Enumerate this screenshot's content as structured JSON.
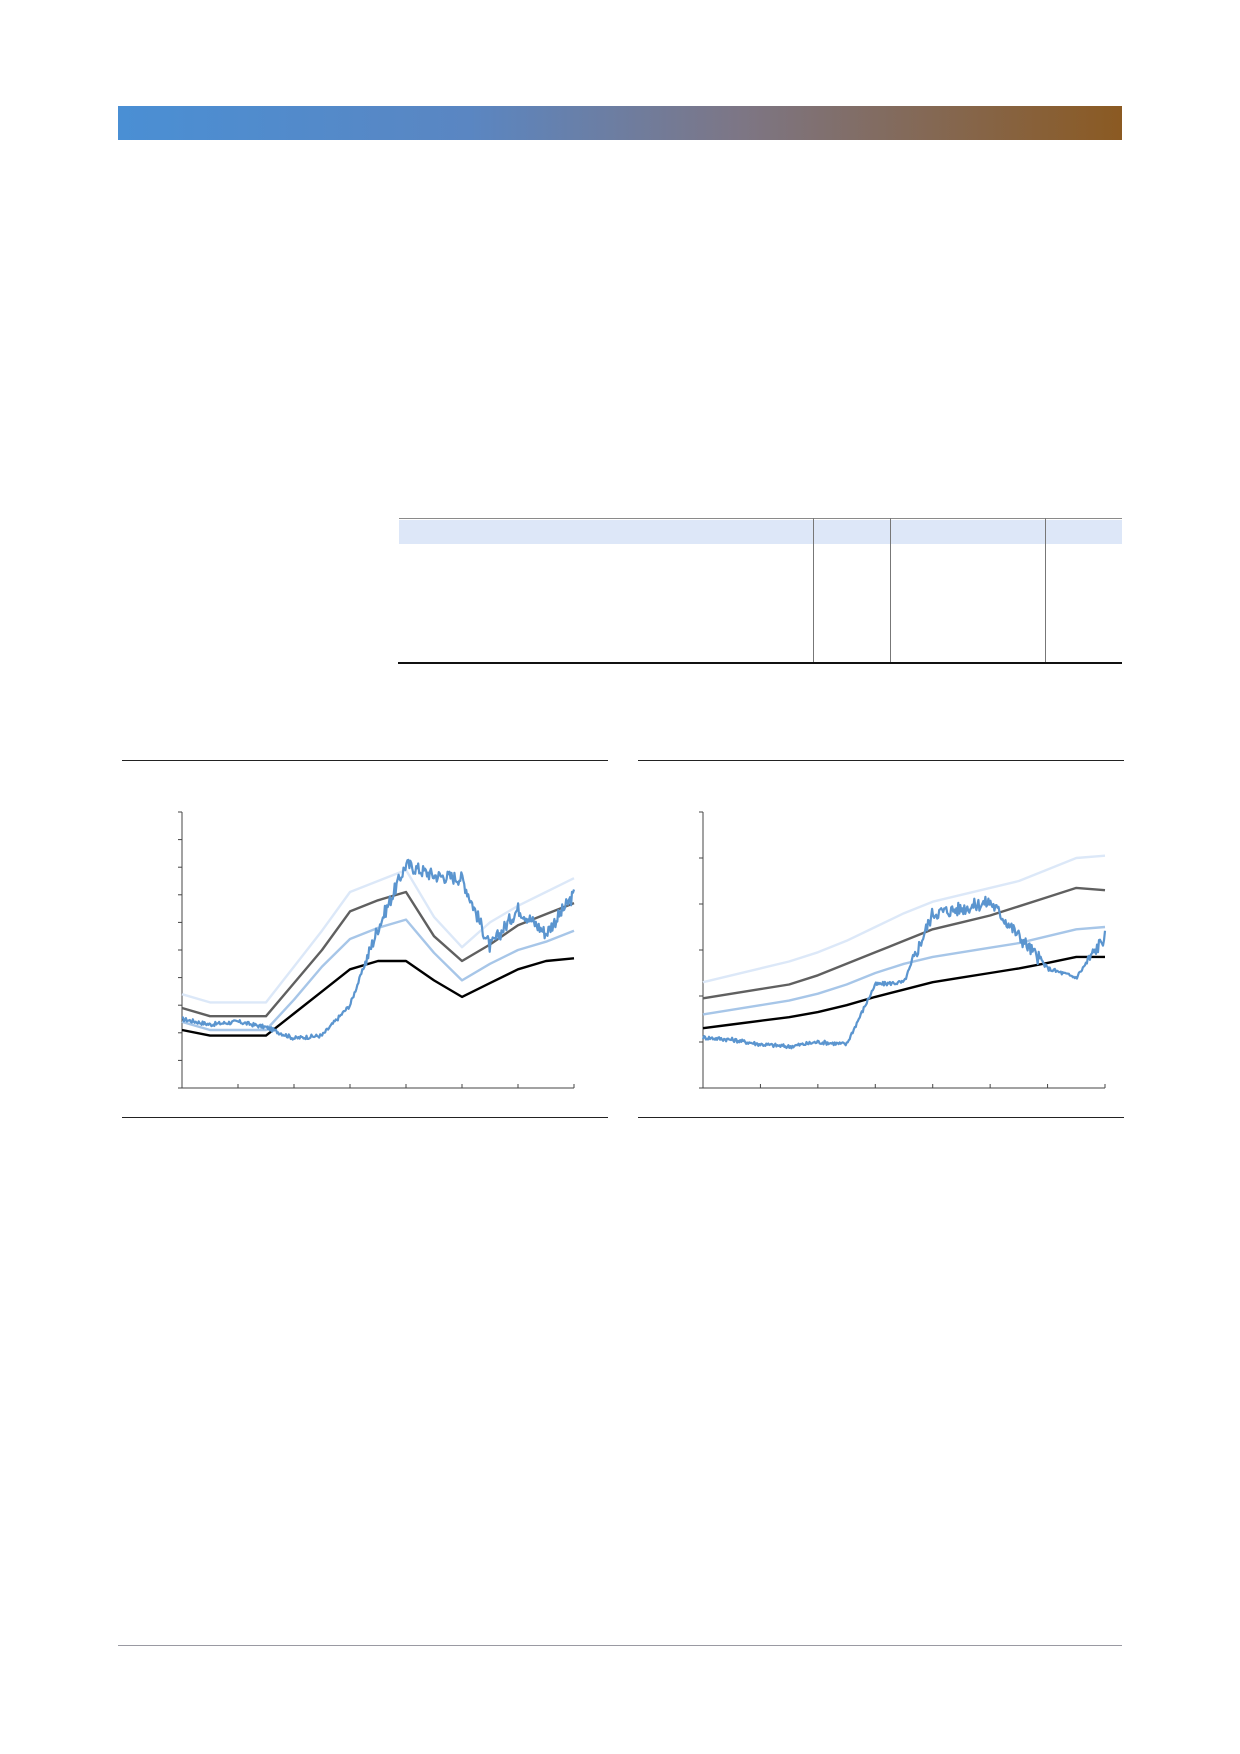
{
  "header": {
    "title": "",
    "gradient_start": "#4a8fd4",
    "gradient_end": "#8b5a22"
  },
  "table": {
    "columns": [
      "",
      "",
      "",
      ""
    ],
    "rows": [],
    "header_bg": "#dde7f8"
  },
  "chart_data": [
    {
      "type": "line",
      "title": "",
      "xlabel": "",
      "ylabel": "",
      "x_ticks": 7,
      "y_ticks": 10,
      "x": [
        0,
        0.5,
        1,
        1.5,
        2,
        2.5,
        3,
        3.5,
        4,
        4.5,
        5,
        5.5,
        6,
        6.5,
        7
      ],
      "ylim": [
        0,
        10
      ],
      "series": [
        {
          "color": "#dce8f8",
          "style": "band-top",
          "values": [
            3.4,
            3.1,
            3.1,
            3.1,
            4.4,
            5.7,
            7.1,
            7.5,
            7.9,
            6.2,
            5.1,
            6.0,
            6.6,
            7.1,
            7.6
          ]
        },
        {
          "color": "#606060",
          "style": "upper",
          "values": [
            2.9,
            2.6,
            2.6,
            2.6,
            3.8,
            5.0,
            6.4,
            6.8,
            7.1,
            5.5,
            4.6,
            5.2,
            5.9,
            6.3,
            6.7
          ]
        },
        {
          "color": "#a7c6e8",
          "style": "lower",
          "values": [
            2.4,
            2.1,
            2.1,
            2.1,
            3.2,
            4.4,
            5.4,
            5.8,
            6.1,
            4.9,
            3.9,
            4.5,
            5.0,
            5.3,
            5.7
          ]
        },
        {
          "color": "#000000",
          "style": "floor",
          "values": [
            2.1,
            1.9,
            1.9,
            1.9,
            2.7,
            3.5,
            4.3,
            4.6,
            4.6,
            3.9,
            3.3,
            3.8,
            4.3,
            4.6,
            4.7
          ]
        },
        {
          "color": "#5b95cf",
          "style": "actual",
          "values": [
            2.5,
            2.3,
            2.4,
            2.2,
            1.8,
            1.9,
            3.0,
            5.8,
            8.1,
            7.7,
            7.6,
            5.1,
            6.5,
            5.6,
            7.0
          ]
        }
      ]
    },
    {
      "type": "line",
      "title": "",
      "xlabel": "",
      "ylabel": "",
      "x_ticks": 7,
      "y_ticks": 6,
      "x": [
        0,
        0.5,
        1,
        1.5,
        2,
        2.5,
        3,
        3.5,
        4,
        4.5,
        5,
        5.5,
        6,
        6.5,
        7
      ],
      "ylim": [
        0,
        6
      ],
      "series": [
        {
          "color": "#dce8f8",
          "style": "band-top",
          "values": [
            2.3,
            2.45,
            2.6,
            2.75,
            2.95,
            3.2,
            3.5,
            3.8,
            4.05,
            4.2,
            4.35,
            4.5,
            4.75,
            5.0,
            5.05
          ]
        },
        {
          "color": "#606060",
          "style": "upper",
          "values": [
            1.95,
            2.05,
            2.15,
            2.25,
            2.45,
            2.7,
            2.95,
            3.2,
            3.45,
            3.6,
            3.75,
            3.95,
            4.15,
            4.35,
            4.3
          ]
        },
        {
          "color": "#a7c6e8",
          "style": "lower",
          "values": [
            1.6,
            1.7,
            1.8,
            1.9,
            2.05,
            2.25,
            2.5,
            2.7,
            2.85,
            2.95,
            3.05,
            3.15,
            3.3,
            3.45,
            3.5
          ]
        },
        {
          "color": "#000000",
          "style": "floor",
          "values": [
            1.3,
            1.38,
            1.46,
            1.54,
            1.65,
            1.8,
            1.98,
            2.14,
            2.3,
            2.4,
            2.5,
            2.6,
            2.72,
            2.85,
            2.85
          ]
        },
        {
          "color": "#5b95cf",
          "style": "actual",
          "values": [
            1.1,
            1.05,
            0.95,
            0.9,
            1.0,
            0.95,
            2.25,
            2.3,
            3.8,
            3.9,
            4.05,
            3.3,
            2.6,
            2.4,
            3.3
          ]
        }
      ]
    }
  ]
}
